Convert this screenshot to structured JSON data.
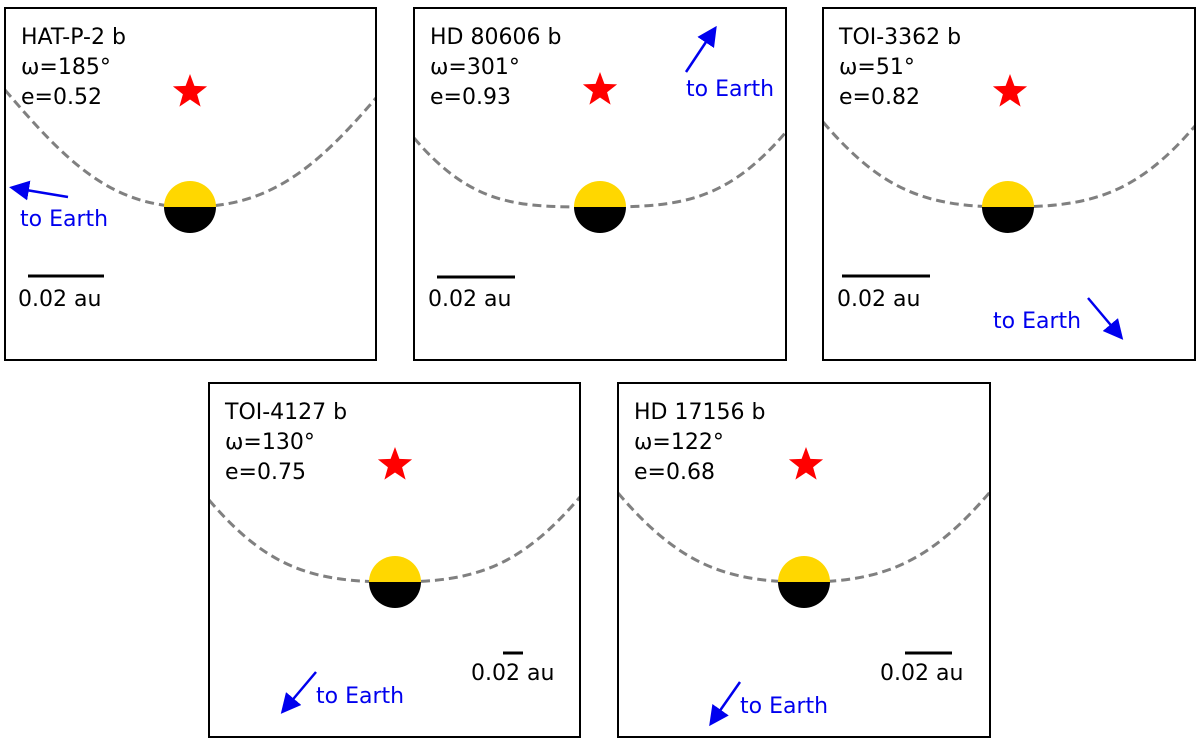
{
  "panels": [
    {
      "name": "HAT-P-2 b",
      "omega": "ω=185°",
      "ecc": "e=0.52",
      "scale": "0.02 au",
      "arrow": "to Earth"
    },
    {
      "name": "HD 80606 b",
      "omega": "ω=301°",
      "ecc": "e=0.93",
      "scale": "0.02 au",
      "arrow": "to Earth"
    },
    {
      "name": "TOI-3362 b",
      "omega": "ω=51°",
      "ecc": "e=0.82",
      "scale": "0.02 au",
      "arrow": "to Earth"
    },
    {
      "name": "TOI-4127 b",
      "omega": "ω=130°",
      "ecc": "e=0.75",
      "scale": "0.02 au",
      "arrow": "to Earth"
    },
    {
      "name": "HD 17156 b",
      "omega": "ω=122°",
      "ecc": "e=0.68",
      "scale": "0.02 au",
      "arrow": "to Earth"
    }
  ]
}
